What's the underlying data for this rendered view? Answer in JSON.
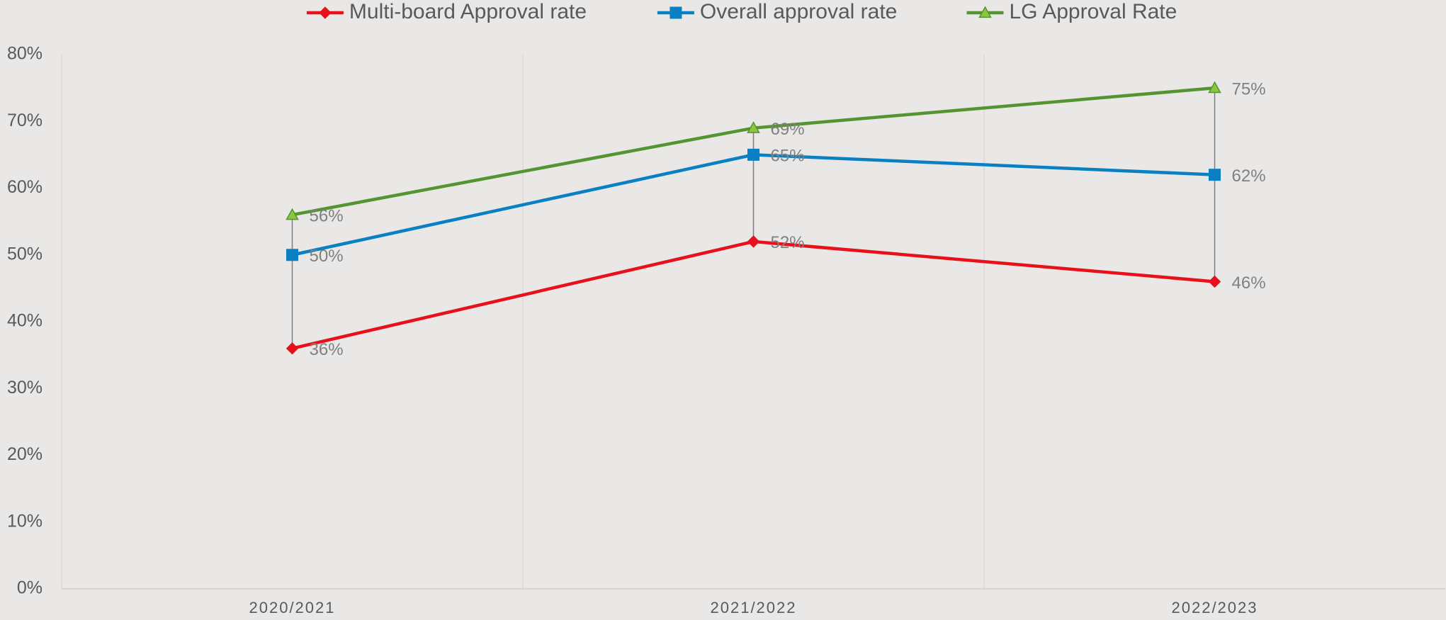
{
  "chart_data": {
    "type": "line",
    "categories": [
      "2020/2021",
      "2021/2022",
      "2022/2023"
    ],
    "series": [
      {
        "name": "Multi-board Approval rate",
        "color": "#e8101a",
        "marker": "diamond",
        "values": [
          36,
          52,
          46
        ],
        "value_labels": [
          "36%",
          "52%",
          "46%"
        ]
      },
      {
        "name": "Overall approval rate",
        "color": "#0a80c4",
        "marker": "square",
        "values": [
          50,
          65,
          62
        ],
        "value_labels": [
          "50%",
          "65%",
          "62%"
        ]
      },
      {
        "name": "LG Approval Rate",
        "color": "#559433",
        "marker": "triangle",
        "values": [
          56,
          69,
          75
        ],
        "value_labels": [
          "56%",
          "69%",
          "75%"
        ]
      }
    ],
    "ylim": [
      0,
      80
    ],
    "yticks": [
      {
        "value": 0,
        "label": "0%"
      },
      {
        "value": 10,
        "label": "10%"
      },
      {
        "value": 20,
        "label": "20%"
      },
      {
        "value": 30,
        "label": "30%"
      },
      {
        "value": 40,
        "label": "40%"
      },
      {
        "value": 50,
        "label": "50%"
      },
      {
        "value": 60,
        "label": "60%"
      },
      {
        "value": 70,
        "label": "70%"
      },
      {
        "value": 80,
        "label": "80%"
      }
    ],
    "legend": "top",
    "high_low_lines": true
  }
}
